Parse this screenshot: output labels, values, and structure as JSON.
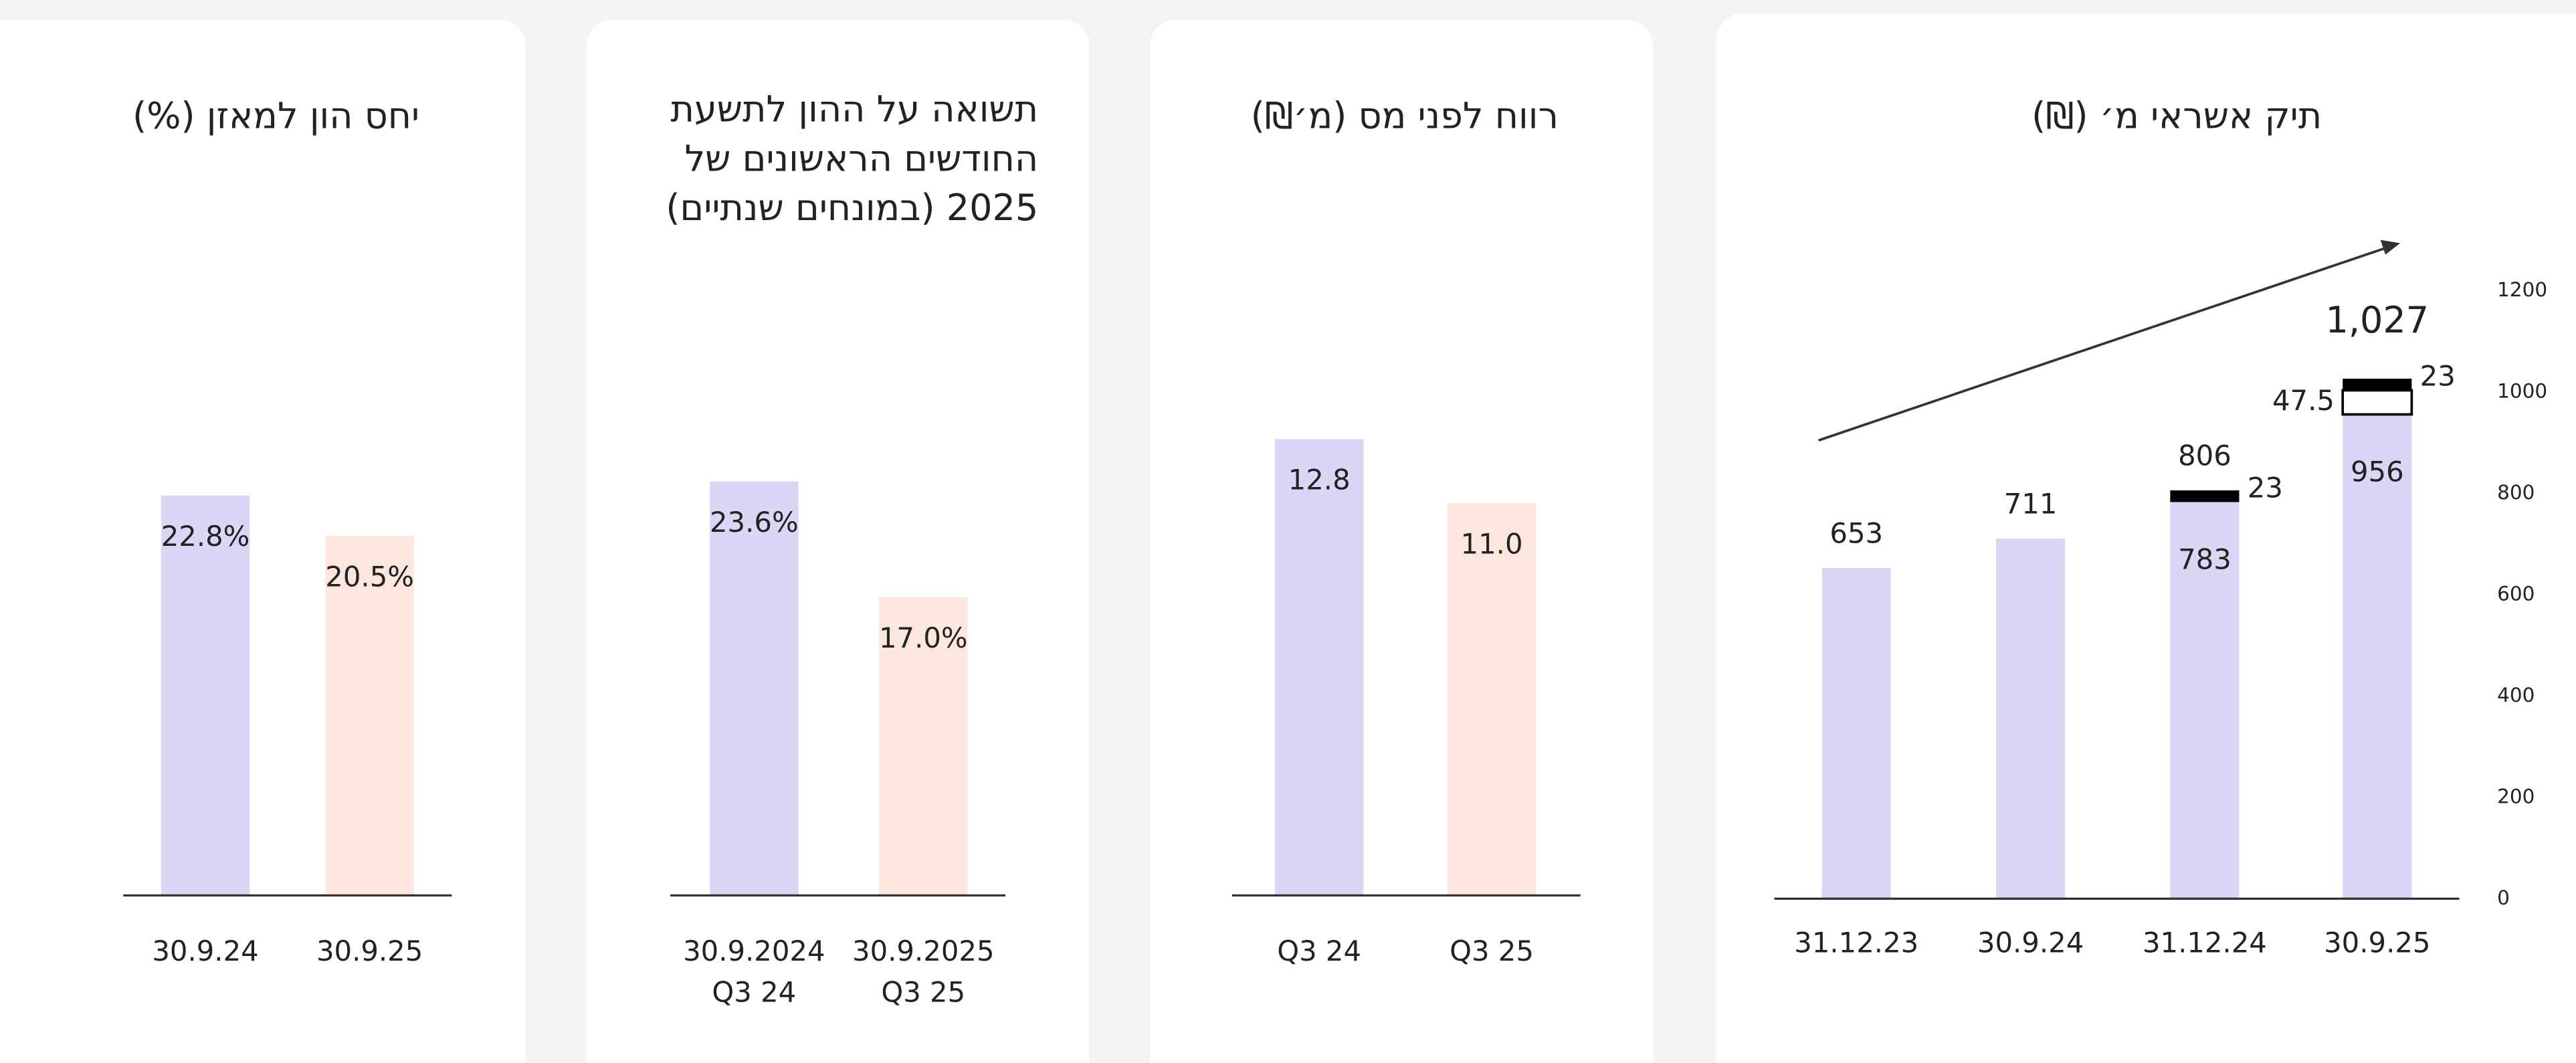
{
  "chart_data": [
    {
      "type": "bar",
      "title": [
        "יחס הון למאזן (%)"
      ],
      "categories": [
        [
          "30.9.24"
        ],
        [
          "30.9.25"
        ]
      ],
      "values": [
        22.8,
        20.5
      ],
      "value_labels": [
        "22.8%",
        "20.5%"
      ],
      "colors": [
        "#ddd5f6",
        "#fde6dd"
      ],
      "ylim": [
        0,
        37
      ]
    },
    {
      "type": "bar",
      "title": [
        "תשואה על ההון לתשעת",
        "החודשים הראשונים של",
        "2025 (במונחים שנתיים)"
      ],
      "categories": [
        [
          "30.9.2024",
          "Q3 24"
        ],
        [
          "30.9.2025",
          "Q3 25"
        ]
      ],
      "values": [
        23.6,
        17.0
      ],
      "value_labels": [
        "23.6%",
        "17.0%"
      ],
      "colors": [
        "#ddd5f6",
        "#fde6dd"
      ],
      "ylim": [
        0,
        37
      ]
    },
    {
      "type": "bar",
      "title": [
        "רווח לפני מס (מ׳₪)"
      ],
      "categories": [
        [
          "Q3 24"
        ],
        [
          "Q3 25"
        ]
      ],
      "values": [
        12.8,
        11.0
      ],
      "value_labels": [
        "12.8",
        "11.0"
      ],
      "colors": [
        "#ddd5f6",
        "#fde6dd"
      ],
      "ylim": [
        0,
        18.2
      ]
    },
    {
      "type": "stacked_bar",
      "title": [
        "תיק אשראי מ׳ (₪)"
      ],
      "categories": [
        "31.12.23",
        "30.9.24",
        "31.12.24",
        "30.9.25"
      ],
      "series": [
        {
          "color": "#ddd5f6",
          "values": [
            653,
            711,
            783,
            956
          ]
        },
        {
          "color": "#ffffff",
          "values": [
            null,
            null,
            null,
            47.5
          ]
        },
        {
          "color": "#000000",
          "values": [
            null,
            null,
            23,
            23
          ]
        }
      ],
      "totals": {
        "values": [
          653,
          711,
          806,
          1027
        ],
        "value_labels": [
          "653",
          "711",
          "806",
          "1,027"
        ]
      },
      "ylim": [
        0,
        1200
      ],
      "yticks": [
        0,
        200,
        400,
        600,
        800,
        1000,
        1200
      ]
    }
  ]
}
